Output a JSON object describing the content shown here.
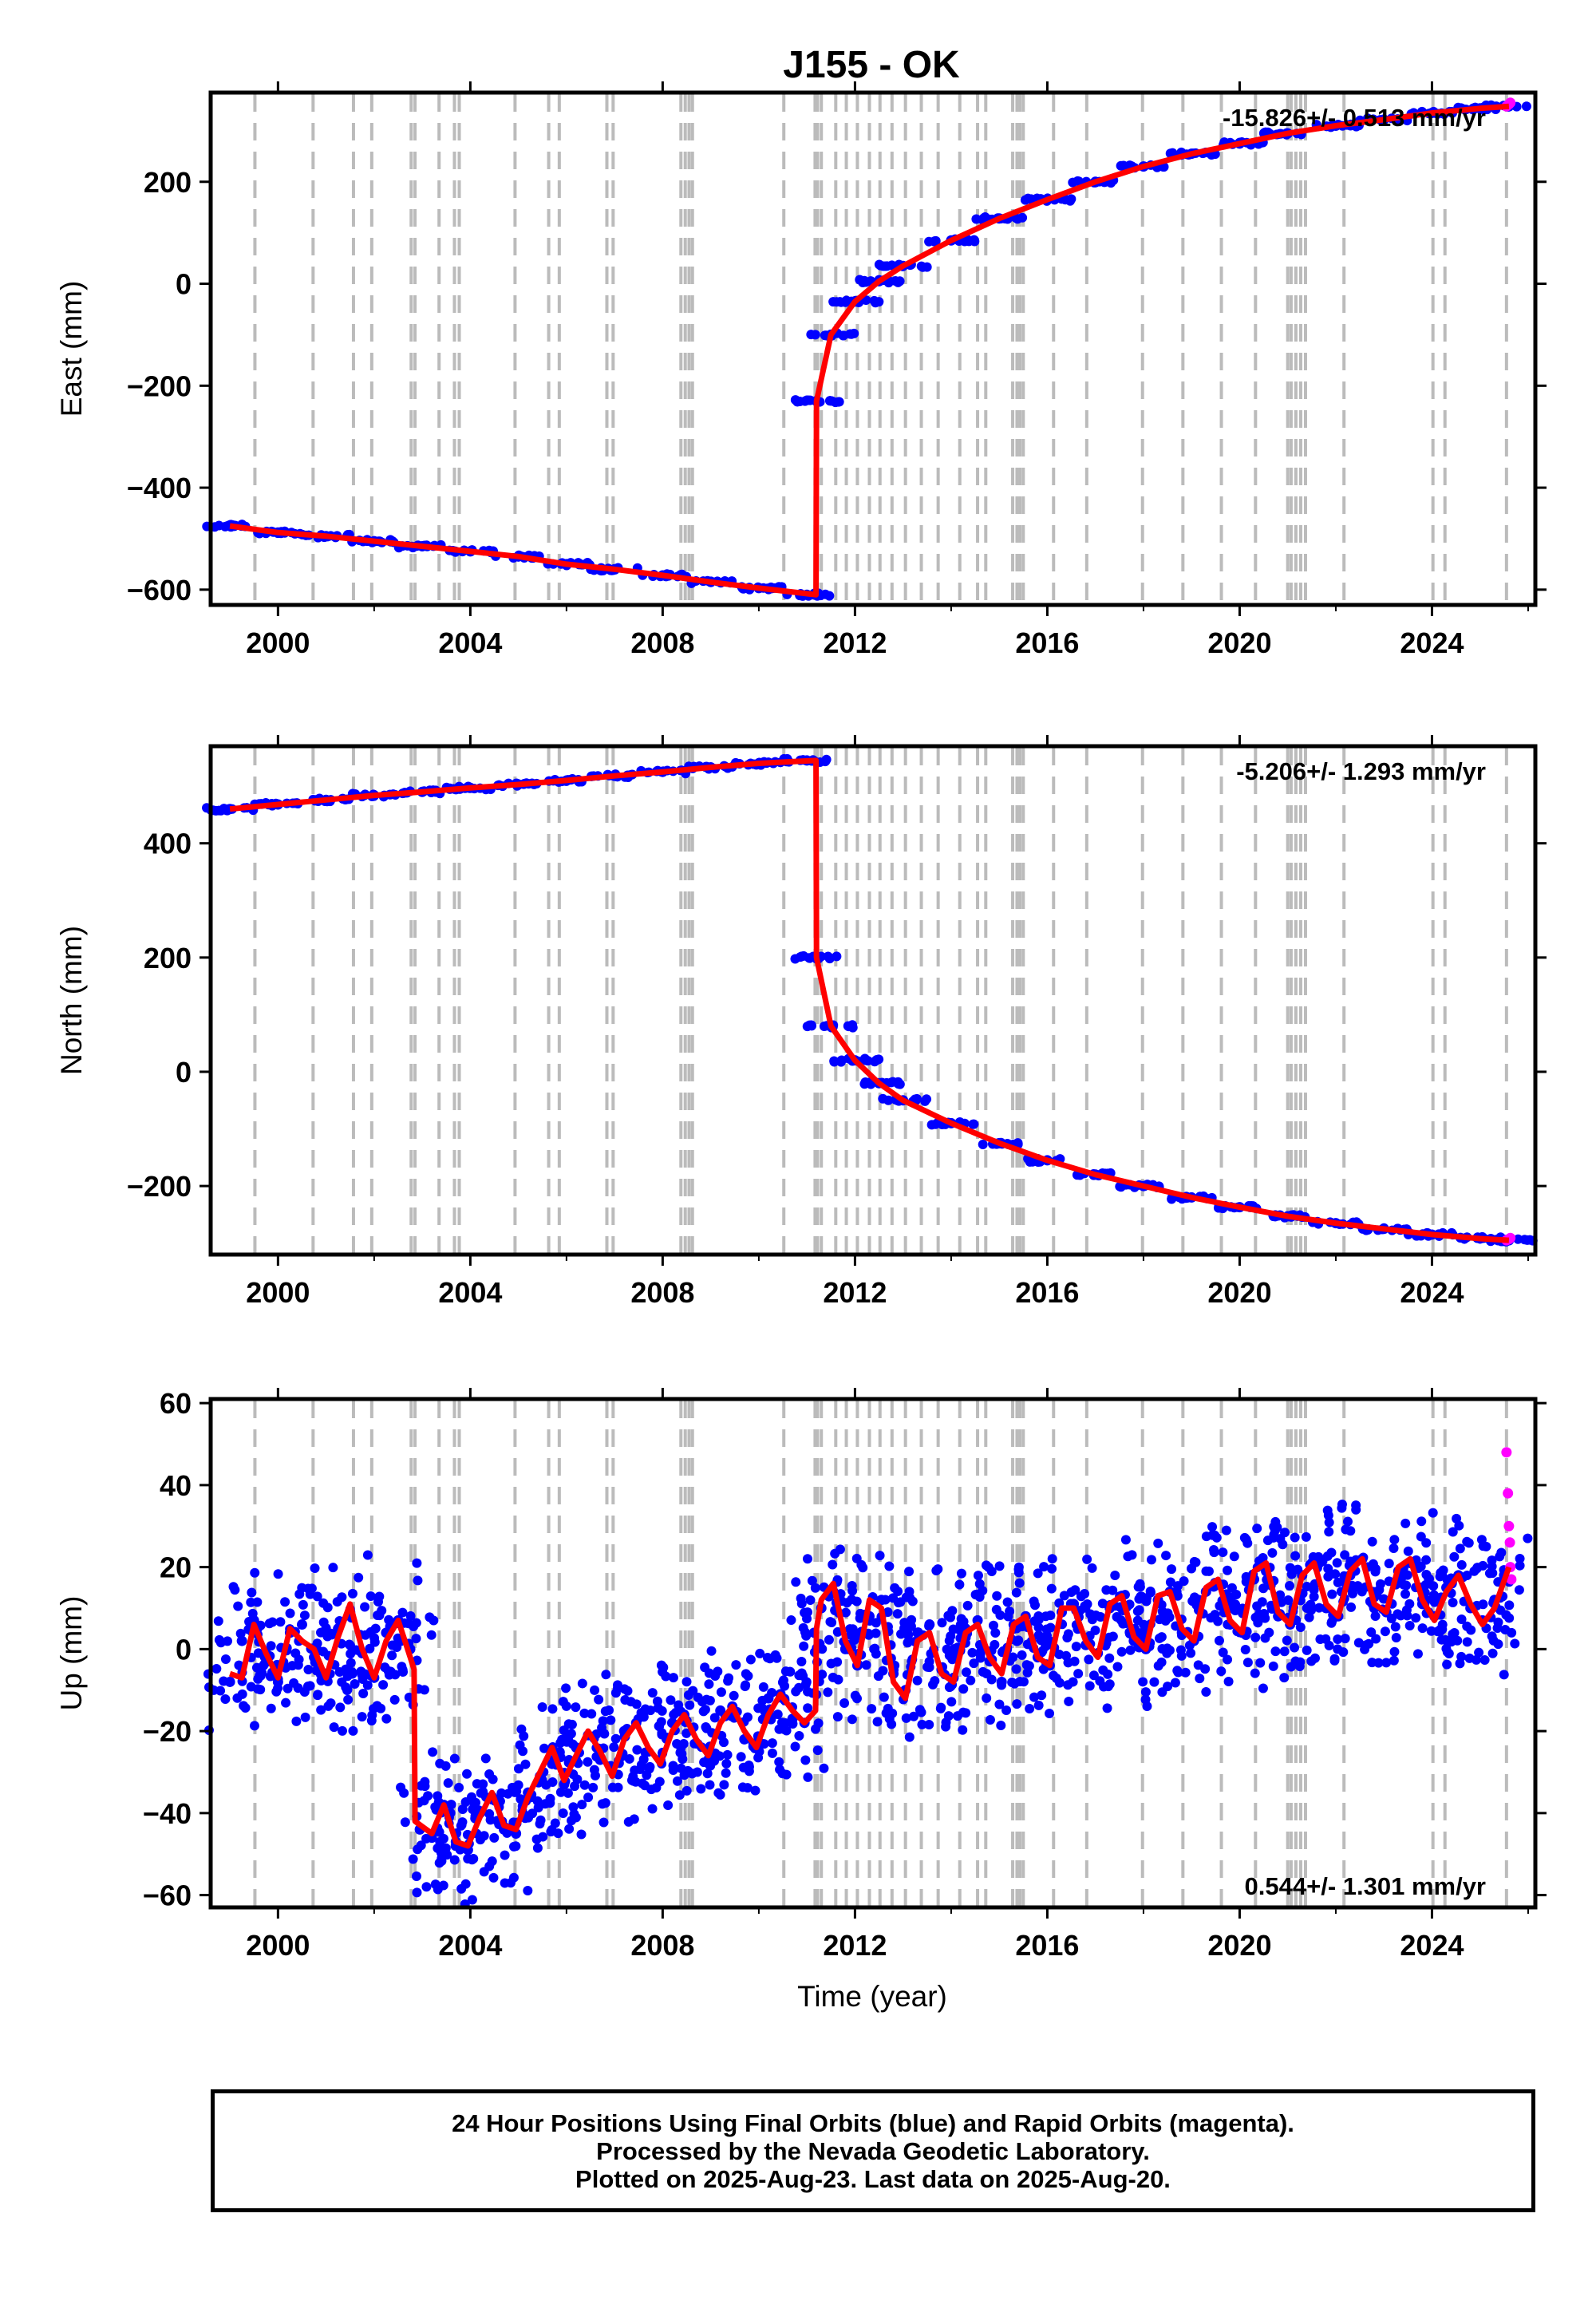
{
  "title": "J155 - OK",
  "xlabel": "Time (year)",
  "footer": {
    "line1": "24 Hour Positions Using Final Orbits (blue) and Rapid Orbits (magenta).",
    "line2": "Processed by the Nevada Geodetic Laboratory.",
    "line3": "Plotted on 2025-Aug-23. Last data on 2025-Aug-20."
  },
  "colors": {
    "final_orbits": "#0000ff",
    "rapid_orbits": "#ff00ff",
    "model": "#ff0000",
    "events": "#bbbbbb"
  },
  "chart_data": [
    {
      "type": "scatter",
      "panel": "east",
      "ylabel": "East (mm)",
      "rate_label": "-15.826+/- 0.513 mm/yr",
      "rate_position": "top-right",
      "xlim": [
        1998.6,
        2026.15
      ],
      "ylim": [
        -630,
        375
      ],
      "xticks": [
        2000,
        2004,
        2008,
        2012,
        2016,
        2020,
        2024
      ],
      "yticks": [
        -600,
        -400,
        -200,
        0,
        200
      ],
      "grid": false,
      "series": [
        {
          "name": "Final Orbits",
          "style": "points",
          "x": [
            1999.0,
            2000.0,
            2001.0,
            2002.0,
            2003.0,
            2004.0,
            2005.0,
            2006.0,
            2007.0,
            2008.0,
            2009.0,
            2010.0,
            2011.0,
            2011.2,
            2011.5,
            2012.0,
            2012.5,
            2013.0,
            2014.0,
            2015.0,
            2016.0,
            2017.0,
            2018.0,
            2019.0,
            2020.0,
            2021.0,
            2022.0,
            2023.0,
            2024.0,
            2025.0,
            2025.6
          ],
          "y": [
            -475,
            -488,
            -495,
            -505,
            -515,
            -525,
            -535,
            -550,
            -560,
            -572,
            -585,
            -597,
            -610,
            -230,
            -100,
            -35,
            5,
            35,
            85,
            128,
            165,
            200,
            230,
            255,
            275,
            295,
            310,
            322,
            335,
            344,
            348
          ]
        },
        {
          "name": "Rapid Orbits",
          "style": "points",
          "x": [
            2025.55,
            2025.6,
            2025.63
          ],
          "y": [
            348,
            352,
            355
          ]
        },
        {
          "name": "Model",
          "style": "line",
          "x": [
            1999.0,
            2000.0,
            2001.0,
            2002.0,
            2003.0,
            2004.0,
            2005.0,
            2006.0,
            2007.0,
            2008.0,
            2009.0,
            2010.0,
            2011.19,
            2011.2,
            2011.5,
            2012.0,
            2012.5,
            2013.0,
            2014.0,
            2015.0,
            2016.0,
            2017.0,
            2018.0,
            2019.0,
            2020.0,
            2021.0,
            2022.0,
            2023.0,
            2024.0,
            2025.0,
            2025.6
          ],
          "y": [
            -475,
            -488,
            -495,
            -505,
            -515,
            -525,
            -535,
            -550,
            -560,
            -572,
            -585,
            -597,
            -610,
            -230,
            -100,
            -35,
            5,
            35,
            85,
            128,
            165,
            200,
            230,
            255,
            275,
            295,
            310,
            322,
            335,
            344,
            348
          ]
        }
      ]
    },
    {
      "type": "scatter",
      "panel": "north",
      "ylabel": "North (mm)",
      "rate_label": "-5.206+/- 1.293 mm/yr",
      "rate_position": "top-right",
      "xlim": [
        1998.6,
        2026.15
      ],
      "ylim": [
        -320,
        570
      ],
      "xticks": [
        2000,
        2004,
        2008,
        2012,
        2016,
        2020,
        2024
      ],
      "yticks": [
        -200,
        0,
        200,
        400
      ],
      "grid": false,
      "series": [
        {
          "name": "Final Orbits",
          "style": "points",
          "x": [
            1999.0,
            2000.0,
            2001.0,
            2002.0,
            2003.0,
            2004.0,
            2005.0,
            2006.0,
            2007.0,
            2008.0,
            2009.0,
            2010.0,
            2011.0,
            2011.2,
            2011.5,
            2012.0,
            2012.5,
            2013.0,
            2014.0,
            2015.0,
            2016.0,
            2017.0,
            2018.0,
            2019.0,
            2020.0,
            2021.0,
            2022.0,
            2023.0,
            2024.0,
            2025.0,
            2025.6
          ],
          "y": [
            460,
            468,
            476,
            484,
            490,
            497,
            503,
            510,
            518,
            525,
            533,
            540,
            545,
            200,
            80,
            20,
            -20,
            -50,
            -90,
            -125,
            -155,
            -180,
            -200,
            -220,
            -237,
            -253,
            -265,
            -275,
            -285,
            -292,
            -295
          ]
        },
        {
          "name": "Rapid Orbits",
          "style": "points",
          "x": [
            2025.55,
            2025.6,
            2025.63
          ],
          "y": [
            -295,
            -293,
            -291
          ]
        },
        {
          "name": "Model",
          "style": "line",
          "x": [
            1999.0,
            2000.0,
            2001.0,
            2002.0,
            2003.0,
            2004.0,
            2005.0,
            2006.0,
            2007.0,
            2008.0,
            2009.0,
            2010.0,
            2011.19,
            2011.2,
            2011.5,
            2012.0,
            2012.5,
            2013.0,
            2014.0,
            2015.0,
            2016.0,
            2017.0,
            2018.0,
            2019.0,
            2020.0,
            2021.0,
            2022.0,
            2023.0,
            2024.0,
            2025.0,
            2025.6
          ],
          "y": [
            460,
            468,
            476,
            484,
            490,
            497,
            503,
            510,
            518,
            525,
            533,
            540,
            545,
            200,
            80,
            20,
            -20,
            -50,
            -90,
            -125,
            -155,
            -180,
            -200,
            -220,
            -237,
            -253,
            -265,
            -275,
            -285,
            -292,
            -295
          ]
        }
      ]
    },
    {
      "type": "scatter",
      "panel": "up",
      "ylabel": "Up (mm)",
      "rate_label": "0.544+/- 1.301 mm/yr",
      "rate_position": "bottom-right",
      "xlim": [
        1998.6,
        2026.15
      ],
      "ylim": [
        -63,
        61
      ],
      "xticks": [
        2000,
        2004,
        2008,
        2012,
        2016,
        2020,
        2024
      ],
      "yticks": [
        -60,
        -40,
        -20,
        0,
        20,
        40,
        60
      ],
      "grid": false,
      "series": [
        {
          "name": "Final Orbits",
          "style": "points",
          "x": [
            1999.0,
            1999.25,
            1999.5,
            1999.75,
            2000.0,
            2000.25,
            2000.5,
            2000.75,
            2001.0,
            2001.25,
            2001.5,
            2001.75,
            2002.0,
            2002.25,
            2002.5,
            2002.75,
            2002.95,
            2003.2,
            2003.45,
            2003.7,
            2003.95,
            2004.2,
            2004.45,
            2004.7,
            2004.95,
            2005.2,
            2005.45,
            2005.7,
            2005.95,
            2006.2,
            2006.45,
            2006.7,
            2006.95,
            2007.2,
            2007.45,
            2007.7,
            2007.95,
            2008.2,
            2008.45,
            2008.7,
            2008.95,
            2009.2,
            2009.45,
            2009.7,
            2009.95,
            2010.2,
            2010.45,
            2010.7,
            2010.95,
            2011.15,
            2011.3,
            2011.55,
            2011.8,
            2012.05,
            2012.3,
            2012.55,
            2012.8,
            2013.05,
            2013.3,
            2013.55,
            2013.8,
            2014.05,
            2014.3,
            2014.55,
            2014.8,
            2015.05,
            2015.3,
            2015.55,
            2015.8,
            2016.05,
            2016.3,
            2016.55,
            2016.8,
            2017.05,
            2017.3,
            2017.55,
            2017.8,
            2018.05,
            2018.3,
            2018.55,
            2018.8,
            2019.05,
            2019.3,
            2019.55,
            2019.8,
            2020.05,
            2020.3,
            2020.55,
            2020.8,
            2021.05,
            2021.3,
            2021.55,
            2021.8,
            2022.05,
            2022.3,
            2022.55,
            2022.8,
            2023.05,
            2023.3,
            2023.55,
            2023.8,
            2024.05,
            2024.3,
            2024.55,
            2024.8,
            2025.05,
            2025.3,
            2025.5
          ],
          "y": [
            -8,
            2,
            7,
            -1,
            -8,
            4,
            6,
            -2,
            -6,
            5,
            9,
            -1,
            -7,
            4,
            7,
            0,
            -44,
            -46,
            -38,
            -47,
            -49,
            -40,
            -36,
            -44,
            -45,
            -35,
            -31,
            -28,
            -33,
            -24,
            -21,
            -27,
            -29,
            -20,
            -18,
            -25,
            -27,
            -18,
            -16,
            -23,
            -25,
            -15,
            -14,
            -22,
            -23,
            -12,
            -11,
            -17,
            -18,
            4,
            10,
            14,
            0,
            -4,
            8,
            12,
            -6,
            -10,
            4,
            6,
            -5,
            -7,
            5,
            7,
            -3,
            -8,
            6,
            8,
            -2,
            -4,
            9,
            11,
            1,
            -1,
            10,
            13,
            2,
            0,
            12,
            14,
            4,
            2,
            14,
            16,
            6,
            4,
            17,
            19,
            8,
            6,
            18,
            21,
            10,
            8,
            18,
            22,
            10,
            9,
            19,
            21,
            11,
            8,
            15,
            18,
            10,
            7,
            12,
            18
          ]
        },
        {
          "name": "Rapid Orbits",
          "style": "points",
          "x": [
            2025.55,
            2025.58,
            2025.6,
            2025.62,
            2025.63,
            2025.65
          ],
          "y": [
            48,
            38,
            30,
            26,
            20,
            17
          ]
        },
        {
          "name": "Model",
          "style": "line",
          "x": [
            1999.0,
            1999.25,
            1999.5,
            1999.75,
            2000.0,
            2000.25,
            2000.5,
            2000.75,
            2001.0,
            2001.25,
            2001.5,
            2001.75,
            2002.0,
            2002.25,
            2002.5,
            2002.75,
            2002.83,
            2002.85,
            2003.2,
            2003.45,
            2003.7,
            2003.95,
            2004.2,
            2004.45,
            2004.7,
            2004.95,
            2005.2,
            2005.45,
            2005.7,
            2005.95,
            2006.2,
            2006.45,
            2006.7,
            2006.95,
            2007.2,
            2007.45,
            2007.7,
            2007.95,
            2008.2,
            2008.45,
            2008.7,
            2008.95,
            2009.2,
            2009.45,
            2009.7,
            2009.95,
            2010.2,
            2010.45,
            2010.7,
            2010.95,
            2011.18,
            2011.2,
            2011.3,
            2011.55,
            2011.8,
            2012.05,
            2012.3,
            2012.55,
            2012.8,
            2013.05,
            2013.3,
            2013.55,
            2013.8,
            2014.05,
            2014.3,
            2014.55,
            2014.8,
            2015.05,
            2015.3,
            2015.55,
            2015.8,
            2016.05,
            2016.3,
            2016.55,
            2016.8,
            2017.05,
            2017.3,
            2017.55,
            2017.8,
            2018.05,
            2018.3,
            2018.55,
            2018.8,
            2019.05,
            2019.3,
            2019.55,
            2019.8,
            2020.05,
            2020.3,
            2020.55,
            2020.8,
            2021.05,
            2021.3,
            2021.55,
            2021.8,
            2022.05,
            2022.3,
            2022.55,
            2022.8,
            2023.05,
            2023.3,
            2023.55,
            2023.8,
            2024.05,
            2024.3,
            2024.55,
            2024.8,
            2025.05,
            2025.3,
            2025.6
          ],
          "y": [
            -6,
            -7,
            6,
            -1,
            -7,
            5,
            2,
            0,
            -7,
            3,
            11,
            0,
            -7,
            2,
            7,
            -2,
            -5,
            -42,
            -45,
            -38,
            -47,
            -48,
            -41,
            -35,
            -43,
            -44,
            -36,
            -30,
            -24,
            -32,
            -26,
            -20,
            -25,
            -31,
            -22,
            -18,
            -24,
            -28,
            -20,
            -16,
            -22,
            -26,
            -18,
            -14,
            -20,
            -24,
            -16,
            -11,
            -15,
            -18,
            -15,
            5,
            12,
            16,
            2,
            -4,
            12,
            10,
            -8,
            -12,
            2,
            4,
            -6,
            -8,
            4,
            6,
            -2,
            -6,
            6,
            8,
            -2,
            -4,
            10,
            10,
            2,
            -2,
            11,
            13,
            3,
            0,
            13,
            14,
            5,
            2,
            15,
            17,
            7,
            4,
            19,
            21,
            9,
            6,
            18,
            21,
            11,
            8,
            19,
            22,
            11,
            9,
            20,
            22,
            12,
            7,
            14,
            18,
            11,
            6,
            10,
            20
          ]
        }
      ]
    }
  ],
  "event_years": [
    1999.52,
    2000.73,
    2001.57,
    2001.95,
    2002.77,
    2002.85,
    2003.35,
    2003.67,
    2003.77,
    2004.93,
    2005.63,
    2005.85,
    2006.84,
    2006.97,
    2008.38,
    2008.47,
    2008.55,
    2008.62,
    2010.52,
    2011.17,
    2011.22,
    2011.3,
    2011.6,
    2011.82,
    2012.05,
    2012.3,
    2012.52,
    2012.77,
    2013.05,
    2013.38,
    2013.73,
    2014.18,
    2014.55,
    2014.72,
    2015.28,
    2015.37,
    2015.43,
    2015.5,
    2016.13,
    2016.82,
    2017.98,
    2018.82,
    2019.62,
    2020.33,
    2021.0,
    2021.07,
    2021.17,
    2021.27,
    2021.37,
    2022.17,
    2024.02,
    2024.27,
    2025.55
  ]
}
